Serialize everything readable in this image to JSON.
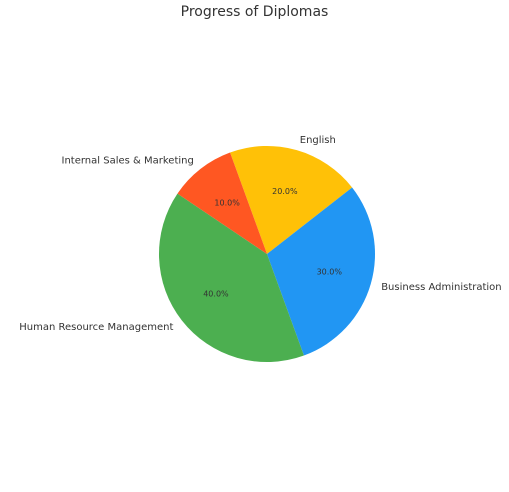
{
  "chart_data": {
    "type": "pie",
    "title": "Progress of Diplomas",
    "categories": [
      "English",
      "Business Administration",
      "Human Resource Management",
      "Internal Sales & Marketing"
    ],
    "values": [
      20,
      30,
      40,
      10
    ],
    "value_labels": [
      "20.0%",
      "30.0%",
      "40.0%",
      "10.0%"
    ],
    "colors": [
      "#FFC107",
      "#2196F3",
      "#4CAF50",
      "#FF5722"
    ],
    "start_angle_deg": 110,
    "direction": "clockwise",
    "legend": "none"
  }
}
